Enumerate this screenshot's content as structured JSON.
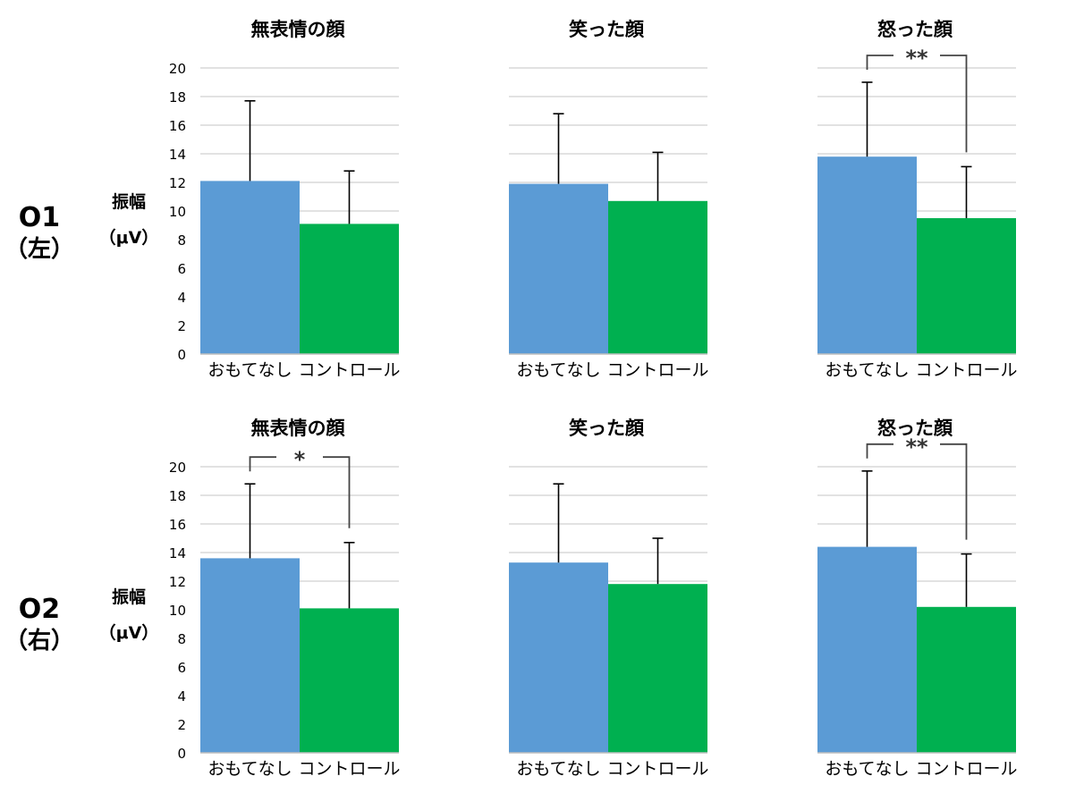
{
  "rows": [
    {
      "id": "o1",
      "label": "O1",
      "sublabel": "（左）",
      "ylabel_line1": "振幅",
      "ylabel_line2": "（μV）"
    },
    {
      "id": "o2",
      "label": "O2",
      "sublabel": "（右）",
      "ylabel_line1": "振幅",
      "ylabel_line2": "（μV）"
    }
  ],
  "chart_data": [
    {
      "type": "bar",
      "row": "O1（左）",
      "title": "無表情の顔",
      "categories": [
        "おもてなし",
        "コントロール"
      ],
      "values": [
        12.1,
        9.1
      ],
      "errors": [
        5.6,
        3.7
      ],
      "ylim": [
        0,
        20
      ],
      "yticks": [
        0,
        2,
        4,
        6,
        8,
        10,
        12,
        14,
        16,
        18,
        20
      ],
      "show_yticks": true,
      "colors": [
        "#5b9bd5",
        "#00b050"
      ],
      "grid": true,
      "significance": ""
    },
    {
      "type": "bar",
      "row": "O1（左）",
      "title": "笑った顔",
      "categories": [
        "おもてなし",
        "コントロール"
      ],
      "values": [
        11.9,
        10.7
      ],
      "errors": [
        4.9,
        3.4
      ],
      "ylim": [
        0,
        20
      ],
      "yticks": [
        0,
        2,
        4,
        6,
        8,
        10,
        12,
        14,
        16,
        18,
        20
      ],
      "show_yticks": false,
      "colors": [
        "#5b9bd5",
        "#00b050"
      ],
      "grid": true,
      "significance": ""
    },
    {
      "type": "bar",
      "row": "O1（左）",
      "title": "怒った顔",
      "categories": [
        "おもてなし",
        "コントロール"
      ],
      "values": [
        13.8,
        9.5
      ],
      "errors": [
        5.2,
        3.6
      ],
      "ylim": [
        0,
        20
      ],
      "yticks": [
        0,
        2,
        4,
        6,
        8,
        10,
        12,
        14,
        16,
        18,
        20
      ],
      "show_yticks": false,
      "colors": [
        "#5b9bd5",
        "#00b050"
      ],
      "grid": true,
      "significance": "**"
    },
    {
      "type": "bar",
      "row": "O2（右）",
      "title": "無表情の顔",
      "categories": [
        "おもてなし",
        "コントロール"
      ],
      "values": [
        13.6,
        10.1
      ],
      "errors": [
        5.2,
        4.6
      ],
      "ylim": [
        0,
        20
      ],
      "yticks": [
        0,
        2,
        4,
        6,
        8,
        10,
        12,
        14,
        16,
        18,
        20
      ],
      "show_yticks": true,
      "colors": [
        "#5b9bd5",
        "#00b050"
      ],
      "grid": true,
      "significance": "*"
    },
    {
      "type": "bar",
      "row": "O2（右）",
      "title": "笑った顔",
      "categories": [
        "おもてなし",
        "コントロール"
      ],
      "values": [
        13.3,
        11.8
      ],
      "errors": [
        5.5,
        3.2
      ],
      "ylim": [
        0,
        20
      ],
      "yticks": [
        0,
        2,
        4,
        6,
        8,
        10,
        12,
        14,
        16,
        18,
        20
      ],
      "show_yticks": false,
      "colors": [
        "#5b9bd5",
        "#00b050"
      ],
      "grid": true,
      "significance": ""
    },
    {
      "type": "bar",
      "row": "O2（右）",
      "title": "怒った顔",
      "categories": [
        "おもてなし",
        "コントロール"
      ],
      "values": [
        14.4,
        10.2
      ],
      "errors": [
        5.3,
        3.7
      ],
      "ylim": [
        0,
        20
      ],
      "yticks": [
        0,
        2,
        4,
        6,
        8,
        10,
        12,
        14,
        16,
        18,
        20
      ],
      "show_yticks": false,
      "colors": [
        "#5b9bd5",
        "#00b050"
      ],
      "grid": true,
      "significance": "**"
    }
  ]
}
